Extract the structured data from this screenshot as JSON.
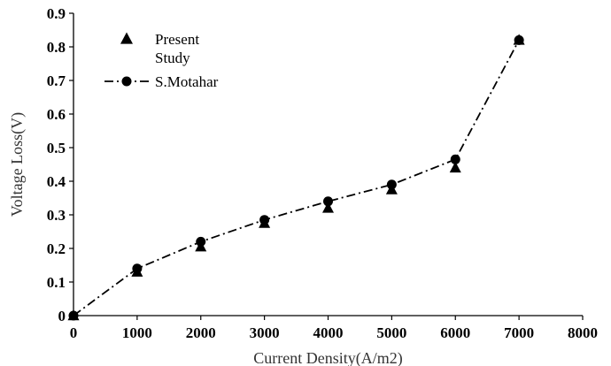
{
  "chart_data": {
    "type": "scatter",
    "title": "",
    "xlabel": "Current Density(A/m2)",
    "ylabel": "Voltage Loss(V)",
    "xlim": [
      0,
      8000
    ],
    "ylim": [
      0,
      0.9
    ],
    "x_ticks": [
      0,
      1000,
      2000,
      3000,
      4000,
      5000,
      6000,
      7000,
      8000
    ],
    "y_ticks": [
      0,
      0.1,
      0.2,
      0.3,
      0.4,
      0.5,
      0.6,
      0.7,
      0.8,
      0.9
    ],
    "x_tick_labels": [
      "0",
      "1000",
      "2000",
      "3000",
      "4000",
      "5000",
      "6000",
      "7000",
      "8000"
    ],
    "y_tick_labels": [
      "0",
      "0.1",
      "0.2",
      "0.3",
      "0.4",
      "0.5",
      "0.6",
      "0.7",
      "0.8",
      "0.9"
    ],
    "grid": false,
    "legend_position": "top-left",
    "series": [
      {
        "name": "Present Study",
        "legend_lines": [
          "Present",
          "Study"
        ],
        "marker": "triangle",
        "line": "none",
        "color": "#000000",
        "x": [
          0,
          1000,
          2000,
          3000,
          4000,
          5000,
          6000,
          7000
        ],
        "y": [
          0.0,
          0.13,
          0.205,
          0.275,
          0.32,
          0.375,
          0.44,
          0.82
        ]
      },
      {
        "name": "S.Motahar",
        "legend_lines": [
          "S.Motahar"
        ],
        "marker": "circle",
        "line": "dash-dot",
        "color": "#000000",
        "x": [
          0,
          1000,
          2000,
          3000,
          4000,
          5000,
          6000,
          7000
        ],
        "y": [
          0.0,
          0.14,
          0.22,
          0.285,
          0.34,
          0.39,
          0.465,
          0.82
        ]
      }
    ]
  }
}
